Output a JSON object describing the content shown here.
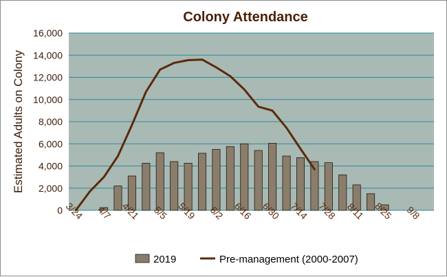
{
  "chart_data": {
    "type": "bar",
    "title": "Colony Attendance",
    "xlabel": "",
    "ylabel": "Estimated Adults on Colony",
    "ylim": [
      0,
      16000
    ],
    "yticks": [
      0,
      2000,
      4000,
      6000,
      8000,
      10000,
      12000,
      14000,
      16000
    ],
    "ytick_labels": [
      "0",
      "2,000",
      "4,000",
      "6,000",
      "8,000",
      "10,000",
      "12,000",
      "14,000",
      "16,000"
    ],
    "categories": [
      "3/24",
      "3/31",
      "4/7",
      "4/14",
      "4/21",
      "4/28",
      "5/5",
      "5/12",
      "5/19",
      "5/26",
      "6/2",
      "6/9",
      "6/16",
      "6/23",
      "6/30",
      "7/7",
      "7/14",
      "7/21",
      "7/28",
      "8/4",
      "8/11",
      "8/18",
      "8/25",
      "9/1",
      "9/8",
      "9/15"
    ],
    "xtick_labels": [
      "3/24",
      "4/7",
      "4/21",
      "5/5",
      "5/19",
      "6/2",
      "6/16",
      "6/30",
      "7/14",
      "7/28",
      "8/11",
      "8/25",
      "9/8"
    ],
    "grid": true,
    "legend_position": "bottom",
    "series": [
      {
        "name": "2019",
        "kind": "bar",
        "color": "#8b7d6b",
        "values": [
          null,
          null,
          250,
          2200,
          3100,
          4250,
          5200,
          4400,
          4250,
          5150,
          5500,
          5750,
          6000,
          5400,
          6050,
          4900,
          4750,
          4400,
          4300,
          3200,
          2300,
          1500,
          500,
          null,
          null,
          null
        ]
      },
      {
        "name": "Pre-management (2000-2007)",
        "kind": "line",
        "color": "#5a2a08",
        "values": [
          0,
          1700,
          3000,
          4900,
          7700,
          10700,
          12700,
          13300,
          13550,
          13600,
          12900,
          12100,
          10900,
          9350,
          9000,
          7450,
          5550,
          3700,
          null,
          null,
          null,
          null,
          null,
          null,
          null,
          null
        ]
      }
    ],
    "colors": {
      "plot_background": "#a9b9b4",
      "gridline": "#2a8a9a",
      "bar_fill": "#8b7d6b",
      "bar_stroke": "#1f1a16",
      "line": "#5a2a08"
    }
  }
}
